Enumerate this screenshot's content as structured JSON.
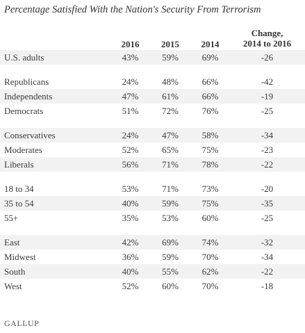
{
  "title": "Percentage Satisfied With the Nation's Security From Terrorism",
  "headers": {
    "col1": "2016",
    "col2": "2015",
    "col3": "2014",
    "change_line1": "Change,",
    "change_line2": "2014 to 2016"
  },
  "rows": [
    {
      "label": "U.S. adults",
      "v2016": "43%",
      "v2015": "59%",
      "v2014": "69%",
      "change": "-26"
    },
    {
      "label": "Republicans",
      "v2016": "24%",
      "v2015": "48%",
      "v2014": "66%",
      "change": "-42"
    },
    {
      "label": "Independents",
      "v2016": "47%",
      "v2015": "61%",
      "v2014": "66%",
      "change": "-19"
    },
    {
      "label": "Democrats",
      "v2016": "51%",
      "v2015": "72%",
      "v2014": "76%",
      "change": "-25"
    },
    {
      "label": "Conservatives",
      "v2016": "24%",
      "v2015": "47%",
      "v2014": "58%",
      "change": "-34"
    },
    {
      "label": "Moderates",
      "v2016": "52%",
      "v2015": "65%",
      "v2014": "75%",
      "change": "-23"
    },
    {
      "label": "Liberals",
      "v2016": "56%",
      "v2015": "71%",
      "v2014": "78%",
      "change": "-22"
    },
    {
      "label": "18 to 34",
      "v2016": "53%",
      "v2015": "71%",
      "v2014": "73%",
      "change": "-20"
    },
    {
      "label": "35 to 54",
      "v2016": "40%",
      "v2015": "59%",
      "v2014": "75%",
      "change": "-35"
    },
    {
      "label": "55+",
      "v2016": "35%",
      "v2015": "53%",
      "v2014": "60%",
      "change": "-25"
    },
    {
      "label": "East",
      "v2016": "42%",
      "v2015": "69%",
      "v2014": "74%",
      "change": "-32"
    },
    {
      "label": "Midwest",
      "v2016": "36%",
      "v2015": "59%",
      "v2014": "70%",
      "change": "-34"
    },
    {
      "label": "South",
      "v2016": "40%",
      "v2015": "55%",
      "v2014": "62%",
      "change": "-22"
    },
    {
      "label": "West",
      "v2016": "52%",
      "v2015": "60%",
      "v2014": "70%",
      "change": "-18"
    }
  ],
  "logo": "GALLUP"
}
